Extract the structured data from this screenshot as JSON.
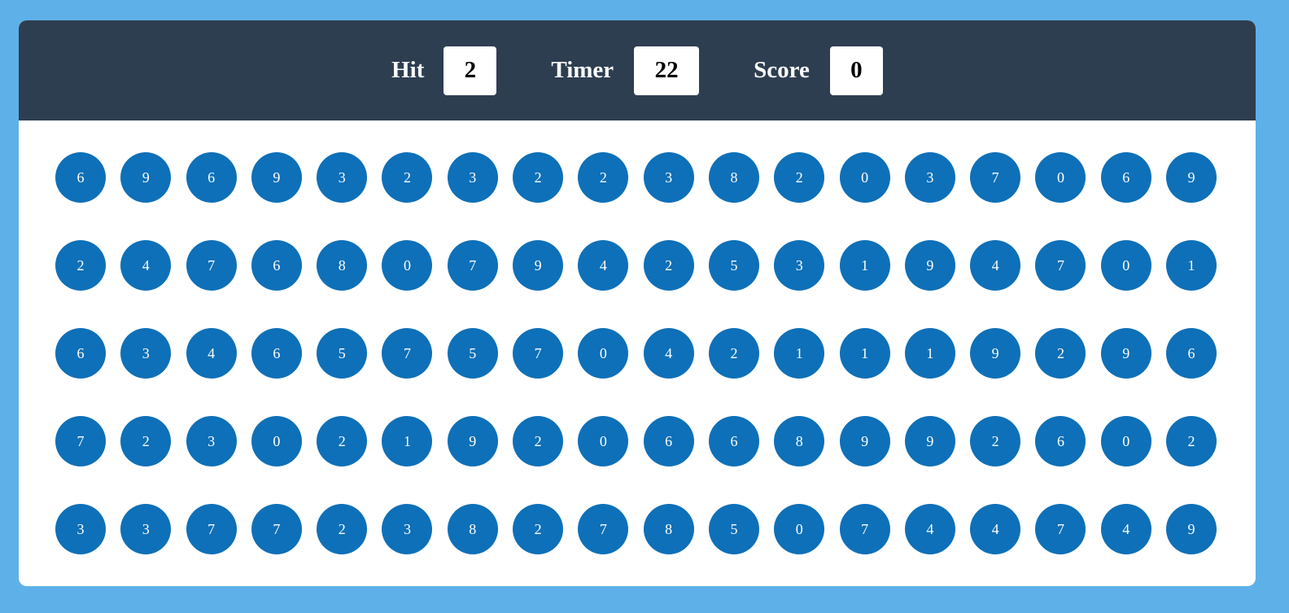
{
  "stats": {
    "hit": {
      "label": "Hit",
      "value": "2"
    },
    "timer": {
      "label": "Timer",
      "value": "22"
    },
    "score": {
      "label": "Score",
      "value": "0"
    }
  },
  "bubbles": [
    [
      "6",
      "9",
      "6",
      "9",
      "3",
      "2",
      "3",
      "2",
      "2",
      "3",
      "8",
      "2",
      "0",
      "3",
      "7",
      "0",
      "6",
      "9"
    ],
    [
      "2",
      "4",
      "7",
      "6",
      "8",
      "0",
      "7",
      "9",
      "4",
      "2",
      "5",
      "3",
      "1",
      "9",
      "4",
      "7",
      "0",
      "1"
    ],
    [
      "6",
      "3",
      "4",
      "6",
      "5",
      "7",
      "5",
      "7",
      "0",
      "4",
      "2",
      "1",
      "1",
      "1",
      "9",
      "2",
      "9",
      "6"
    ],
    [
      "7",
      "2",
      "3",
      "0",
      "2",
      "1",
      "9",
      "2",
      "0",
      "6",
      "6",
      "8",
      "9",
      "9",
      "2",
      "6",
      "0",
      "2"
    ],
    [
      "3",
      "3",
      "7",
      "7",
      "2",
      "3",
      "8",
      "2",
      "7",
      "8",
      "5",
      "0",
      "7",
      "4",
      "4",
      "7",
      "4",
      "9"
    ]
  ],
  "colors": {
    "page_background": "#5eb1e8",
    "top_bar": "#2e3e51",
    "bubble": "#0e70b8",
    "panel": "#ffffff"
  }
}
